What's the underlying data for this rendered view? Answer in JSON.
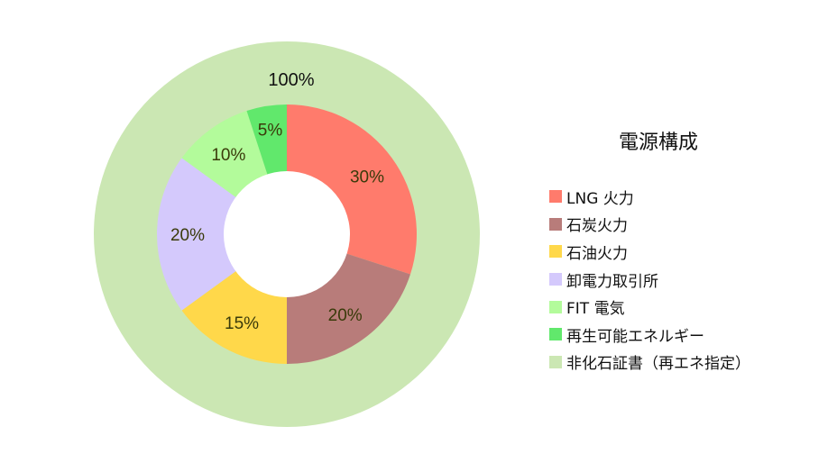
{
  "chart_data": {
    "type": "pie",
    "subtype": "nested-donut",
    "title": "電源構成",
    "legend_position": "right",
    "outer_ring": {
      "name": "非化石証書（再エネ指定）",
      "values": [
        100
      ],
      "labels": [
        "100%"
      ],
      "color": "#cbe7b3"
    },
    "inner_ring": {
      "categories": [
        "LNG 火力",
        "石炭火力",
        "石油火力",
        "卸電力取引所",
        "FIT 電気",
        "再生可能エネルギー"
      ],
      "values": [
        30,
        20,
        15,
        20,
        10,
        5
      ],
      "labels": [
        "30%",
        "20%",
        "15%",
        "20%",
        "10%",
        "5%"
      ],
      "colors": [
        "#ff7b6c",
        "#b87c7a",
        "#ffd84a",
        "#d4c9fc",
        "#b3fb9b",
        "#61e86c"
      ]
    },
    "legend": [
      {
        "label": "LNG 火力",
        "color": "#ff7b6c"
      },
      {
        "label": "石炭火力",
        "color": "#b87c7a"
      },
      {
        "label": "石油火力",
        "color": "#ffd84a"
      },
      {
        "label": "卸電力取引所",
        "color": "#d4c9fc"
      },
      {
        "label": "FIT 電気",
        "color": "#b3fb9b"
      },
      {
        "label": "再生可能エネルギー",
        "color": "#61e86c"
      },
      {
        "label": "非化石証書（再エネ指定）",
        "color": "#cbe7b3"
      }
    ]
  }
}
